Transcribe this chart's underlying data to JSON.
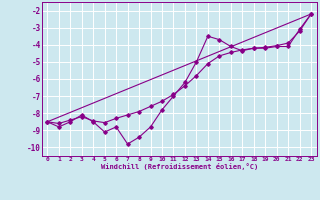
{
  "xlabel": "Windchill (Refroidissement éolien,°C)",
  "background_color": "#cde8ef",
  "grid_color": "#ffffff",
  "line_color": "#880088",
  "xlim": [
    -0.5,
    23.5
  ],
  "ylim": [
    -10.5,
    -1.5
  ],
  "xticks": [
    0,
    1,
    2,
    3,
    4,
    5,
    6,
    7,
    8,
    9,
    10,
    11,
    12,
    13,
    14,
    15,
    16,
    17,
    18,
    19,
    20,
    21,
    22,
    23
  ],
  "yticks": [
    -2,
    -3,
    -4,
    -5,
    -6,
    -7,
    -8,
    -9,
    -10
  ],
  "series1_x": [
    0,
    1,
    2,
    3,
    4,
    5,
    6,
    7,
    8,
    9,
    10,
    11,
    12,
    13,
    14,
    15,
    16,
    17,
    18,
    19,
    20,
    21,
    22,
    23
  ],
  "series1_y": [
    -8.5,
    -8.8,
    -8.5,
    -8.1,
    -8.5,
    -9.1,
    -8.8,
    -9.8,
    -9.4,
    -8.8,
    -7.8,
    -7.0,
    -6.2,
    -5.0,
    -3.5,
    -3.7,
    -4.1,
    -4.35,
    -4.2,
    -4.2,
    -4.1,
    -4.1,
    -3.1,
    -2.2
  ],
  "series2_x": [
    0,
    1,
    2,
    3,
    4,
    5,
    6,
    7,
    8,
    9,
    10,
    11,
    12,
    13,
    14,
    15,
    16,
    17,
    18,
    19,
    20,
    21,
    22,
    23
  ],
  "series2_y": [
    -8.5,
    -8.6,
    -8.4,
    -8.2,
    -8.45,
    -8.55,
    -8.3,
    -8.1,
    -7.9,
    -7.6,
    -7.3,
    -6.9,
    -6.4,
    -5.8,
    -5.1,
    -4.65,
    -4.45,
    -4.3,
    -4.2,
    -4.15,
    -4.05,
    -3.9,
    -3.2,
    -2.2
  ],
  "series3_x": [
    0,
    23
  ],
  "series3_y": [
    -8.5,
    -2.2
  ],
  "font_family": "monospace"
}
